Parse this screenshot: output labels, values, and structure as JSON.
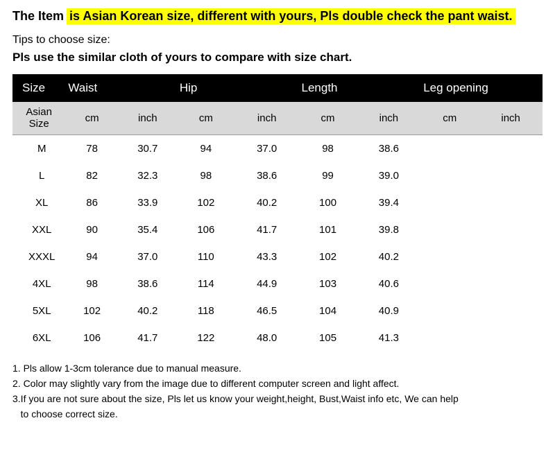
{
  "header": {
    "prefix": "The Item",
    "highlighted": "is Asian Korean size, different with yours, Pls double check the pant waist."
  },
  "tips_label": "Tips to choose size:",
  "tips_bold": "Pls use the similar cloth of yours to compare with size chart.",
  "table": {
    "type": "table",
    "background_color": "#ffffff",
    "header_bg": "#000000",
    "header_fg": "#ffffff",
    "subheader_bg": "#d9d9d9",
    "subheader_fg": "#000000",
    "font_size_body": 15,
    "font_size_header": 17,
    "groups": [
      "Size",
      "Waist",
      "Hip",
      "Length",
      "Leg opening"
    ],
    "sub_first": "Asian\nSize",
    "units": [
      "cm",
      "inch"
    ],
    "rows": [
      {
        "size": "M",
        "waist_cm": "78",
        "waist_in": "30.7",
        "hip_cm": "94",
        "hip_in": "37.0",
        "len_cm": "98",
        "len_in": "38.6",
        "leg_cm": "",
        "leg_in": ""
      },
      {
        "size": "L",
        "waist_cm": "82",
        "waist_in": "32.3",
        "hip_cm": "98",
        "hip_in": "38.6",
        "len_cm": "99",
        "len_in": "39.0",
        "leg_cm": "",
        "leg_in": ""
      },
      {
        "size": "XL",
        "waist_cm": "86",
        "waist_in": "33.9",
        "hip_cm": "102",
        "hip_in": "40.2",
        "len_cm": "100",
        "len_in": "39.4",
        "leg_cm": "",
        "leg_in": ""
      },
      {
        "size": "XXL",
        "waist_cm": "90",
        "waist_in": "35.4",
        "hip_cm": "106",
        "hip_in": "41.7",
        "len_cm": "101",
        "len_in": "39.8",
        "leg_cm": "",
        "leg_in": ""
      },
      {
        "size": "XXXL",
        "waist_cm": "94",
        "waist_in": "37.0",
        "hip_cm": "110",
        "hip_in": "43.3",
        "len_cm": "102",
        "len_in": "40.2",
        "leg_cm": "",
        "leg_in": ""
      },
      {
        "size": "4XL",
        "waist_cm": "98",
        "waist_in": "38.6",
        "hip_cm": "114",
        "hip_in": "44.9",
        "len_cm": "103",
        "len_in": "40.6",
        "leg_cm": "",
        "leg_in": ""
      },
      {
        "size": "5XL",
        "waist_cm": "102",
        "waist_in": "40.2",
        "hip_cm": "118",
        "hip_in": "46.5",
        "len_cm": "104",
        "len_in": "40.9",
        "leg_cm": "",
        "leg_in": ""
      },
      {
        "size": "6XL",
        "waist_cm": "106",
        "waist_in": "41.7",
        "hip_cm": "122",
        "hip_in": "48.0",
        "len_cm": "105",
        "len_in": "41.3",
        "leg_cm": "",
        "leg_in": ""
      }
    ]
  },
  "notes": [
    "1. Pls allow 1-3cm tolerance due to manual measure.",
    "2. Color may slightly vary from the image due to different computer screen and light affect.",
    "3.If you are not sure about the size, Pls let us know your weight,height, Bust,Waist info etc, We can help",
    "   to choose correct size."
  ]
}
